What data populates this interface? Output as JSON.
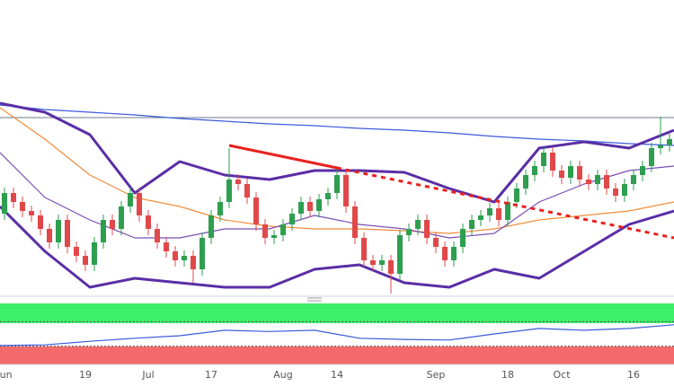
{
  "chart_data": {
    "type": "candlestick",
    "categories": [
      "Jun",
      null,
      null,
      null,
      null,
      null,
      null,
      null,
      null,
      "19",
      null,
      null,
      null,
      null,
      null,
      null,
      "Jul",
      null,
      null,
      null,
      null,
      null,
      null,
      "17",
      null,
      null,
      null,
      null,
      null,
      null,
      null,
      "Aug",
      null,
      null,
      null,
      null,
      null,
      "14",
      null,
      null,
      null,
      null,
      null,
      null,
      null,
      null,
      null,
      null,
      "Sep",
      null,
      null,
      null,
      null,
      null,
      null,
      null,
      "18",
      null,
      null,
      null,
      null,
      null,
      "Oct",
      null,
      null,
      null,
      null,
      null,
      null,
      null,
      "16",
      null,
      null,
      null,
      null
    ],
    "open": [
      92,
      115,
      105,
      95,
      90,
      75,
      60,
      85,
      55,
      45,
      35,
      60,
      85,
      75,
      100,
      115,
      90,
      75,
      60,
      50,
      40,
      45,
      30,
      65,
      90,
      105,
      130,
      125,
      110,
      80,
      65,
      68,
      80,
      92,
      105,
      95,
      108,
      115,
      135,
      100,
      65,
      40,
      35,
      40,
      25,
      68,
      75,
      85,
      65,
      55,
      40,
      55,
      75,
      85,
      90,
      98,
      85,
      105,
      120,
      135,
      145,
      160,
      140,
      132,
      145,
      130,
      125,
      135,
      120,
      112,
      125,
      135,
      145,
      165,
      168
    ],
    "high": [
      121,
      121,
      111,
      101,
      96,
      81,
      91,
      91,
      61,
      51,
      66,
      91,
      91,
      106,
      121,
      121,
      96,
      81,
      66,
      56,
      51,
      51,
      71,
      96,
      111,
      165,
      136,
      131,
      116,
      86,
      74,
      86,
      98,
      111,
      111,
      114,
      121,
      145,
      141,
      106,
      71,
      46,
      46,
      46,
      74,
      81,
      91,
      91,
      71,
      61,
      61,
      81,
      91,
      96,
      104,
      104,
      111,
      126,
      141,
      151,
      166,
      166,
      146,
      151,
      151,
      136,
      141,
      141,
      126,
      131,
      141,
      151,
      171,
      200,
      181
    ],
    "low": [
      85,
      98,
      88,
      83,
      68,
      53,
      53,
      48,
      38,
      28,
      28,
      53,
      68,
      68,
      93,
      83,
      68,
      53,
      43,
      33,
      33,
      15,
      23,
      58,
      83,
      98,
      118,
      103,
      73,
      58,
      58,
      61,
      73,
      85,
      88,
      88,
      101,
      108,
      93,
      58,
      33,
      28,
      28,
      3,
      18,
      61,
      68,
      58,
      48,
      33,
      33,
      48,
      68,
      78,
      83,
      78,
      78,
      98,
      113,
      128,
      138,
      133,
      125,
      125,
      123,
      118,
      118,
      113,
      105,
      105,
      118,
      128,
      138,
      158,
      161
    ],
    "close": [
      115,
      105,
      95,
      90,
      75,
      60,
      85,
      55,
      45,
      35,
      60,
      85,
      75,
      100,
      115,
      90,
      75,
      60,
      50,
      40,
      45,
      30,
      65,
      90,
      105,
      130,
      125,
      110,
      80,
      65,
      68,
      80,
      92,
      105,
      95,
      108,
      115,
      135,
      100,
      65,
      40,
      35,
      40,
      25,
      68,
      75,
      85,
      65,
      55,
      40,
      55,
      75,
      85,
      90,
      98,
      85,
      105,
      120,
      135,
      145,
      160,
      140,
      132,
      145,
      130,
      125,
      135,
      120,
      112,
      125,
      135,
      145,
      165,
      168,
      175
    ],
    "up_color": "#2e9e4f",
    "down_color": "#e0484a",
    "ylim": [
      0,
      330
    ],
    "overlays": [
      {
        "color": "#3b5bdb",
        "width": 1.2,
        "values": [
          213,
          208,
          205,
          202,
          198,
          195,
          192,
          190,
          187,
          185,
          182,
          178,
          175,
          173,
          170,
          168
        ]
      },
      {
        "color": "#f08c3a",
        "width": 1.2,
        "values": [
          210,
          175,
          135,
          110,
          100,
          85,
          78,
          75,
          75,
          73,
          70,
          75,
          85,
          90,
          95,
          105
        ]
      },
      {
        "color": "#7b4fb3",
        "width": 1.2,
        "values": [
          160,
          110,
          85,
          65,
          65,
          75,
          75,
          90,
          80,
          75,
          65,
          70,
          105,
          125,
          140,
          145
        ]
      },
      {
        "color": "#5a2ea6",
        "width": 3,
        "values": [
          215,
          205,
          180,
          115,
          150,
          135,
          130,
          140,
          140,
          138,
          120,
          105,
          165,
          172,
          165,
          185
        ]
      },
      {
        "color": "#5a2ea6",
        "width": 3,
        "values": [
          100,
          50,
          10,
          20,
          15,
          10,
          10,
          30,
          35,
          15,
          10,
          30,
          20,
          50,
          80,
          95
        ]
      }
    ],
    "rsi": {
      "color": "#3b5bdb",
      "ylim": [
        0,
        100
      ],
      "levels": [
        70,
        30
      ],
      "values": [
        31,
        32,
        38,
        43,
        47,
        56,
        54,
        56,
        43,
        41,
        40,
        50,
        59,
        56,
        59,
        65
      ]
    }
  }
}
